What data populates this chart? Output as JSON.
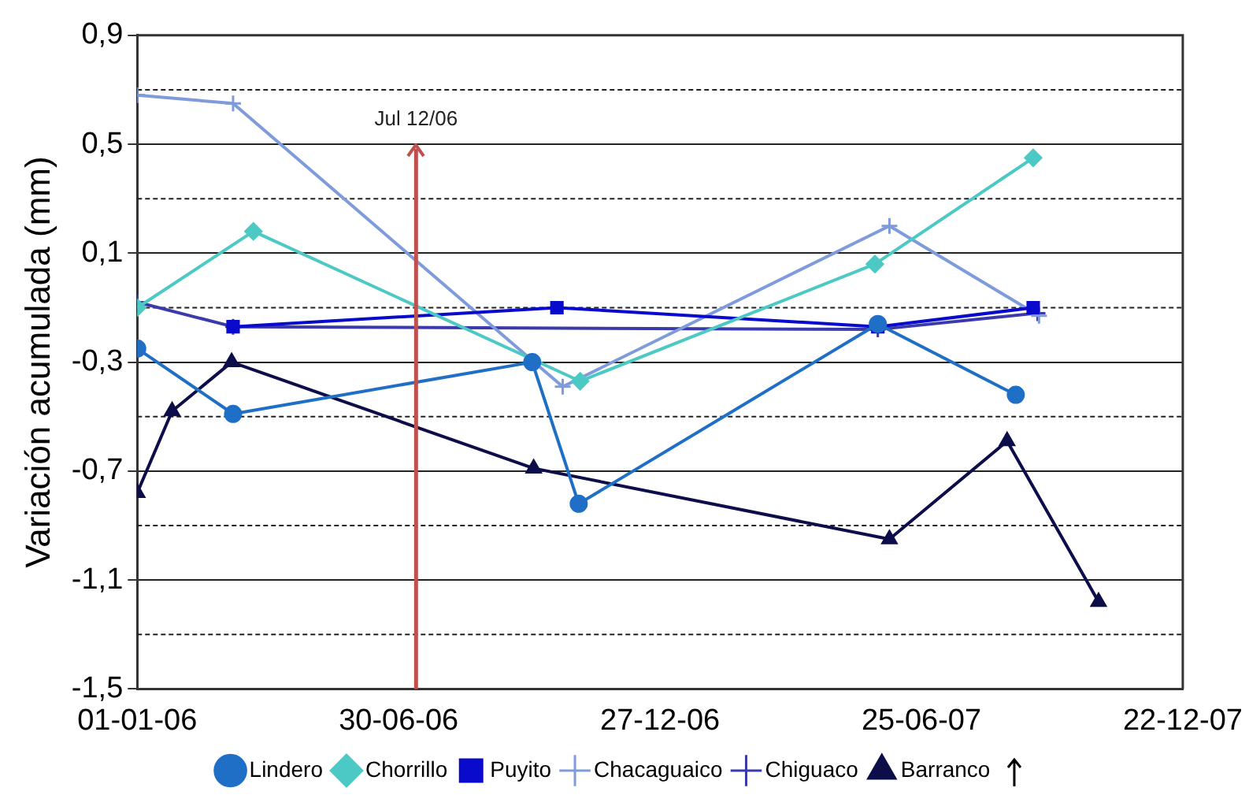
{
  "chart_data": {
    "type": "line",
    "ylabel": "Variación acumulada (mm)",
    "xlim": [
      "2006-01-01",
      "2007-12-22"
    ],
    "xticks": [
      {
        "value": "2006-01-01",
        "label": "01-01-06"
      },
      {
        "value": "2006-06-30",
        "label": "30-06-06"
      },
      {
        "value": "2006-12-27",
        "label": "27-12-06"
      },
      {
        "value": "2007-06-25",
        "label": "25-06-07"
      },
      {
        "value": "2007-12-22",
        "label": "22-12-07"
      }
    ],
    "ylim": [
      -1.5,
      0.9
    ],
    "yticks": [
      {
        "value": -1.5,
        "label": "-1,5"
      },
      {
        "value": -1.3,
        "label": null
      },
      {
        "value": -1.1,
        "label": "-1,1"
      },
      {
        "value": -0.9,
        "label": null
      },
      {
        "value": -0.7,
        "label": "-0,7"
      },
      {
        "value": -0.5,
        "label": null
      },
      {
        "value": -0.3,
        "label": "-0,3"
      },
      {
        "value": -0.1,
        "label": null
      },
      {
        "value": 0.1,
        "label": "0,1"
      },
      {
        "value": 0.3,
        "label": null
      },
      {
        "value": 0.5,
        "label": "0,5"
      },
      {
        "value": 0.7,
        "label": null
      },
      {
        "value": 0.9,
        "label": "0,9"
      }
    ],
    "grid": "y",
    "legend": "bottom",
    "line_style": "solid",
    "series": [
      {
        "name": "Chorrillo",
        "color": "#4cc9c4",
        "marker": "diamond",
        "x": [
          "2006-01-01",
          "2006-03-22",
          "2006-11-02",
          "2007-05-24",
          "2007-09-10"
        ],
        "values": [
          -0.1,
          0.18,
          -0.37,
          0.06,
          0.45
        ]
      },
      {
        "name": "Puyito",
        "color": "#0a0acc",
        "marker": "square",
        "x": [
          "2006-03-08",
          "2006-10-17",
          "2007-05-26",
          "2007-09-10"
        ],
        "values": [
          -0.17,
          -0.1,
          -0.17,
          -0.1
        ]
      },
      {
        "name": "Lindero",
        "color": "#1f6fc6",
        "marker": "circle",
        "x": [
          "2006-01-01",
          "2006-03-08",
          "2006-09-30",
          "2006-11-01",
          "2007-05-26",
          "2007-08-29"
        ],
        "values": [
          -0.25,
          -0.49,
          -0.3,
          -0.82,
          -0.16,
          -0.42
        ]
      },
      {
        "name": "Chacaguaico",
        "color": "#7f9bdc",
        "marker": "cross",
        "x": [
          "2006-01-01",
          "2006-03-08",
          "2006-10-21",
          "2007-06-03",
          "2007-09-14"
        ],
        "values": [
          0.68,
          0.65,
          -0.39,
          0.2,
          -0.13
        ]
      },
      {
        "name": "Chiguaco",
        "color": "#3a3aaa",
        "marker": "cross",
        "x": [
          "2006-01-01",
          "2006-03-08",
          "2007-05-26",
          "2007-09-13"
        ],
        "values": [
          -0.08,
          -0.17,
          -0.18,
          -0.12
        ]
      },
      {
        "name": "Barranco",
        "color": "#0d0d4a",
        "marker": "triangle",
        "x": [
          "2006-01-01",
          "2006-01-25",
          "2006-03-07",
          "2006-10-01",
          "2007-06-03",
          "2007-08-23",
          "2007-10-25"
        ],
        "values": [
          -0.78,
          -0.48,
          -0.3,
          -0.69,
          -0.95,
          -0.59,
          -1.18
        ]
      }
    ],
    "ref_lines": [
      {
        "axis": "x",
        "value": "2006-07-12",
        "label": "Jul 12/06",
        "color": "#c0504d"
      }
    ]
  }
}
